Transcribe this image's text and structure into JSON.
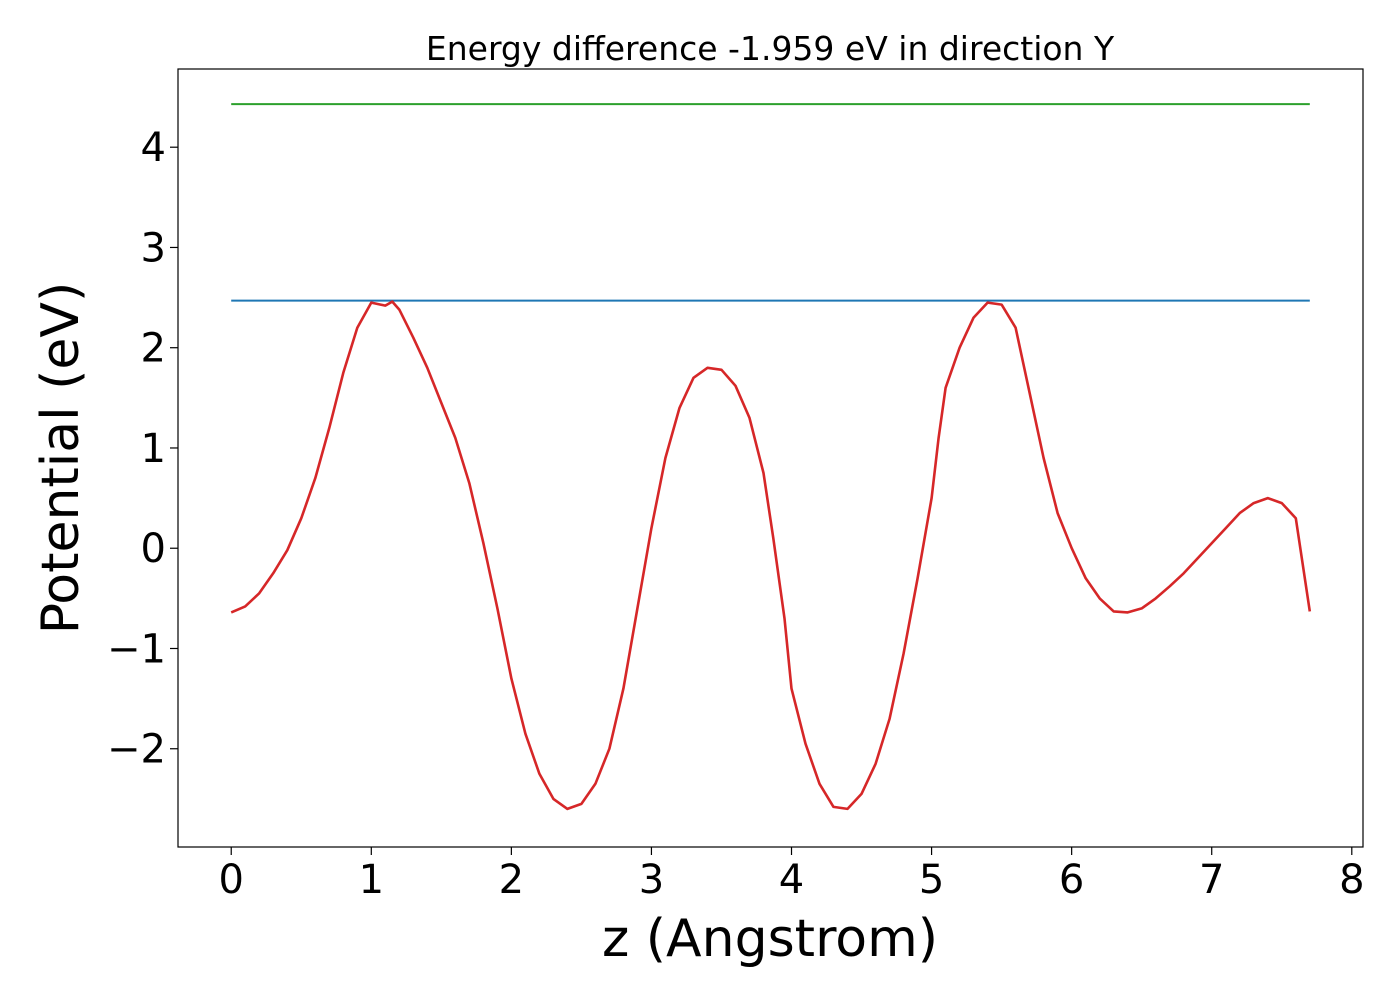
{
  "chart_data": {
    "type": "line",
    "title": "Energy difference -1.959 eV in direction Y",
    "xlabel": "z (Angstrom)",
    "ylabel": "Potential (eV)",
    "xlim": [
      -0.38,
      8.08
    ],
    "ylim": [
      -2.98,
      4.78
    ],
    "xticks": [
      0,
      1,
      2,
      3,
      4,
      5,
      6,
      7,
      8
    ],
    "xtick_labels": [
      "0",
      "1",
      "2",
      "3",
      "4",
      "5",
      "6",
      "7",
      "8"
    ],
    "yticks": [
      -2,
      -1,
      0,
      1,
      2,
      3,
      4
    ],
    "ytick_labels": [
      "−2",
      "−1",
      "0",
      "1",
      "2",
      "3",
      "4"
    ],
    "grid": false,
    "legend": false,
    "series": [
      {
        "color": "#2ca02c",
        "style": "horizontal",
        "x": [
          0,
          7.7
        ],
        "y": [
          4.43,
          4.43
        ]
      },
      {
        "color": "#1f77b4",
        "style": "horizontal",
        "x": [
          0,
          7.7
        ],
        "y": [
          2.47,
          2.47
        ]
      },
      {
        "color": "#d62728",
        "style": "curve",
        "x": [
          0,
          0.1,
          0.2,
          0.3,
          0.4,
          0.5,
          0.6,
          0.7,
          0.8,
          0.9,
          1.0,
          1.1,
          1.15,
          1.2,
          1.3,
          1.4,
          1.5,
          1.6,
          1.7,
          1.8,
          1.9,
          2.0,
          2.1,
          2.2,
          2.3,
          2.4,
          2.5,
          2.6,
          2.7,
          2.8,
          2.9,
          3.0,
          3.1,
          3.2,
          3.3,
          3.4,
          3.5,
          3.6,
          3.7,
          3.8,
          3.87,
          3.95,
          4.0,
          4.1,
          4.2,
          4.3,
          4.4,
          4.5,
          4.6,
          4.7,
          4.8,
          4.9,
          5.0,
          5.05,
          5.1,
          5.2,
          5.3,
          5.4,
          5.5,
          5.6,
          5.7,
          5.8,
          5.9,
          6.0,
          6.1,
          6.2,
          6.3,
          6.4,
          6.5,
          6.6,
          6.7,
          6.8,
          6.9,
          7.0,
          7.1,
          7.2,
          7.3,
          7.4,
          7.5,
          7.6,
          7.7
        ],
        "y": [
          -0.64,
          -0.58,
          -0.45,
          -0.25,
          -0.02,
          0.3,
          0.7,
          1.2,
          1.75,
          2.2,
          2.45,
          2.42,
          2.46,
          2.38,
          2.1,
          1.8,
          1.45,
          1.1,
          0.65,
          0.05,
          -0.6,
          -1.3,
          -1.85,
          -2.25,
          -2.5,
          -2.6,
          -2.55,
          -2.35,
          -2.0,
          -1.4,
          -0.6,
          0.2,
          0.9,
          1.4,
          1.7,
          1.8,
          1.78,
          1.62,
          1.3,
          0.75,
          0.1,
          -0.7,
          -1.4,
          -1.95,
          -2.35,
          -2.58,
          -2.6,
          -2.45,
          -2.15,
          -1.7,
          -1.05,
          -0.3,
          0.5,
          1.1,
          1.6,
          2.0,
          2.3,
          2.45,
          2.43,
          2.2,
          1.55,
          0.9,
          0.35,
          0.0,
          -0.3,
          -0.5,
          -0.63,
          -0.64,
          -0.6,
          -0.5,
          -0.38,
          -0.25,
          -0.1,
          0.05,
          0.2,
          0.35,
          0.45,
          0.5,
          0.45,
          0.3,
          -0.63
        ]
      }
    ]
  }
}
